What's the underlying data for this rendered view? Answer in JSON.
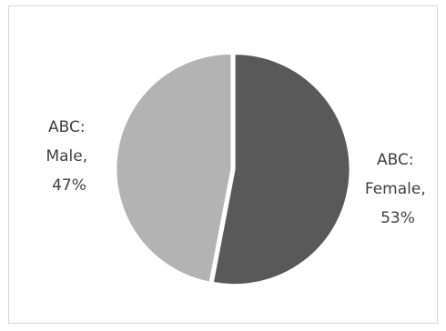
{
  "chart_data": {
    "type": "pie",
    "title": "",
    "slices": [
      {
        "label": "ABC: Female, 53%",
        "label_lines": [
          "ABC:",
          "Female,",
          "53%"
        ],
        "series": "ABC",
        "category": "Female",
        "value": 53,
        "color": "#595959"
      },
      {
        "label": "ABC: Male, 47%",
        "label_lines": [
          "ABC:",
          "Male,",
          "47%"
        ],
        "series": "ABC",
        "category": "Male",
        "value": 47,
        "color": "#b3b3b3"
      }
    ],
    "start_angle": "12 o'clock",
    "direction": "clockwise",
    "legend": "none",
    "separator_color": "#ffffff"
  }
}
